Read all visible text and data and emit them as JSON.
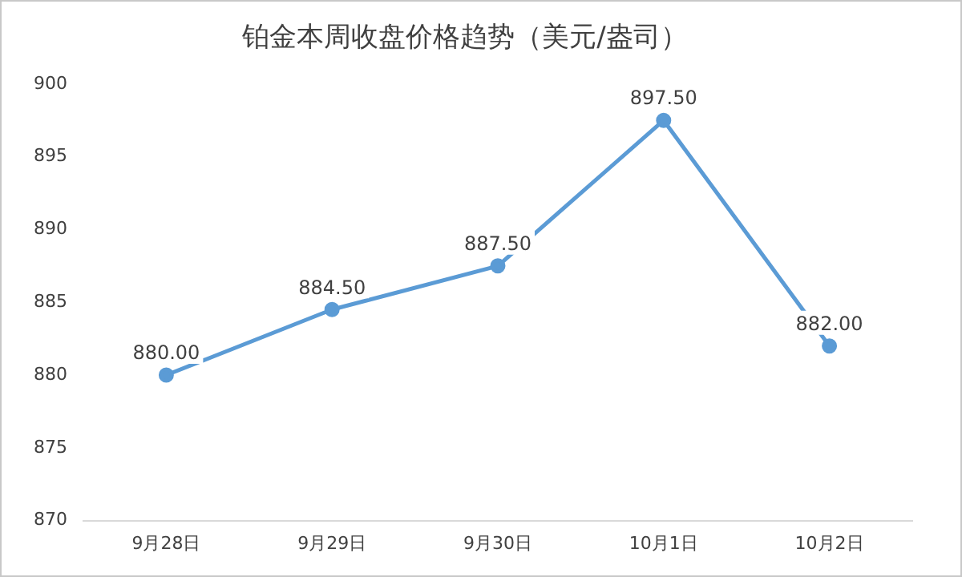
{
  "chart_data": {
    "type": "line",
    "title": "铂金本周收盘价格趋势（美元/盎司）",
    "categories": [
      "9月28日",
      "9月29日",
      "9月30日",
      "10月1日",
      "10月2日"
    ],
    "series": [
      {
        "color": "#5b9bd5",
        "values": [
          880.0,
          884.5,
          887.5,
          897.5,
          882.0
        ],
        "value_labels": [
          "880.00",
          "884.50",
          "887.50",
          "897.50",
          "882.00"
        ]
      }
    ],
    "ylim": [
      870,
      900
    ],
    "yticks": [
      870,
      875,
      880,
      885,
      890,
      895,
      900
    ],
    "grid": false,
    "legend": false,
    "marker": "circle",
    "line_style": "solid"
  }
}
